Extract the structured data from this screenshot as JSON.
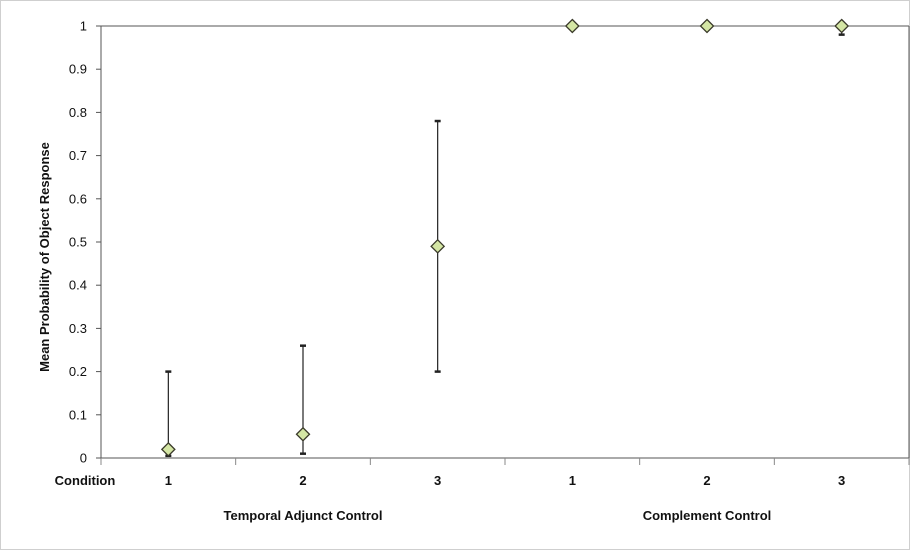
{
  "chart_data": {
    "type": "scatter",
    "ylabel": "Mean Probability of Object Response",
    "ylim": [
      0,
      1
    ],
    "yticks": [
      "0",
      "0.1",
      "0.2",
      "0.3",
      "0.4",
      "0.5",
      "0.6",
      "0.7",
      "0.8",
      "0.9",
      "1"
    ],
    "row_label": "Condition",
    "categories": [
      "1",
      "2",
      "3",
      "1",
      "2",
      "3"
    ],
    "groups": [
      {
        "label": "Temporal Adjunct Control",
        "span": [
          0,
          2
        ]
      },
      {
        "label": "Complement Control",
        "span": [
          3,
          5
        ]
      }
    ],
    "series": [
      {
        "values": [
          0.02,
          0.055,
          0.49,
          1.0,
          1.0,
          1.0
        ],
        "err_low": [
          0.005,
          0.01,
          0.2,
          1.0,
          1.0,
          0.98
        ],
        "err_high": [
          0.2,
          0.26,
          0.78,
          1.0,
          1.0,
          1.0
        ]
      }
    ],
    "marker": "diamond",
    "marker_color": "#d4e6a4",
    "marker_edge": "#3a3a2a",
    "grid": false
  }
}
